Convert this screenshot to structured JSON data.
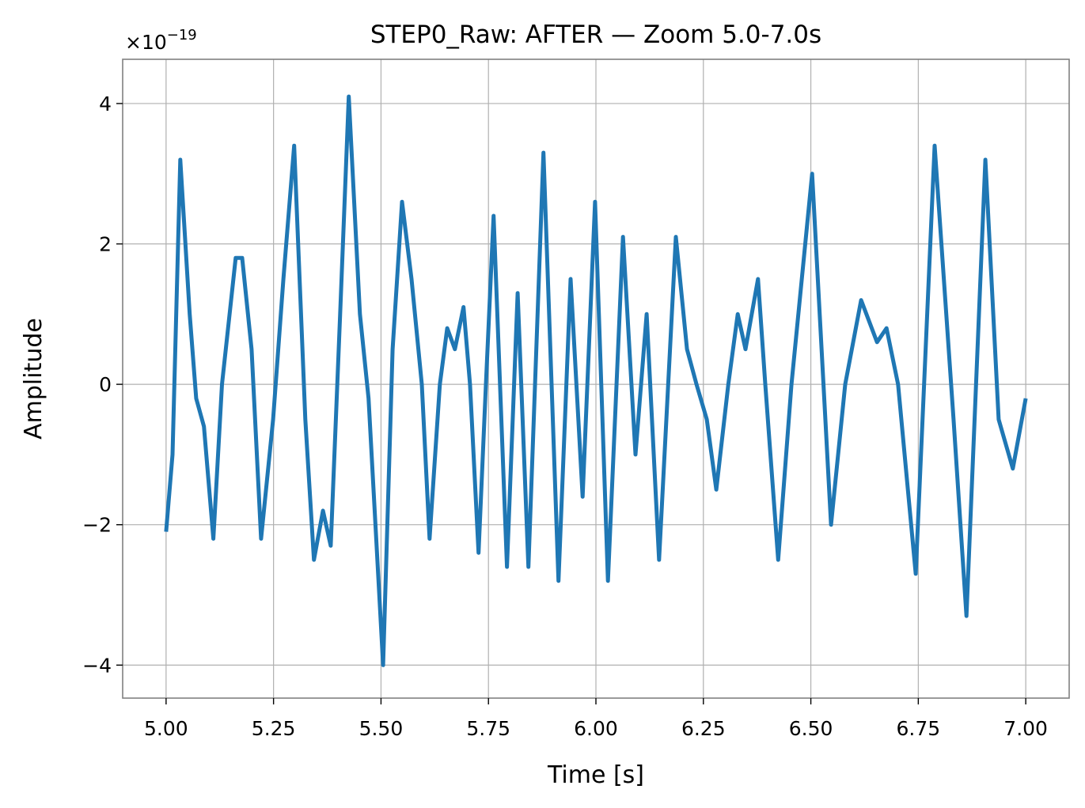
{
  "chart_data": {
    "type": "line",
    "title": "STEP0_Raw: AFTER — Zoom 5.0-7.0s",
    "xlabel": "Time [s]",
    "ylabel": "Amplitude",
    "y_offset": {
      "base": "×10",
      "exponent": "−19"
    },
    "color": "#1f77b4",
    "grid": true,
    "xlim": [
      4.899,
      7.101
    ],
    "ylim": [
      -4.47,
      4.63
    ],
    "xticks": [
      {
        "value": 5,
        "label": "5.00"
      },
      5.25,
      {
        "value": 5.5,
        "label": "5.50"
      },
      5.75,
      {
        "value": 6,
        "label": "6.00"
      },
      6.25,
      {
        "value": 6.5,
        "label": "6.50"
      },
      6.75,
      {
        "value": 7,
        "label": "7.00"
      }
    ],
    "yticks": [
      {
        "value": -4,
        "label": "−4"
      },
      {
        "value": -2,
        "label": "−2"
      },
      0,
      2,
      4
    ],
    "x": [
      5.0,
      5.015,
      5.033,
      5.055,
      5.07,
      5.088,
      5.11,
      5.13,
      5.162,
      5.177,
      5.199,
      5.221,
      5.249,
      5.273,
      5.298,
      5.324,
      5.344,
      5.365,
      5.383,
      5.405,
      5.425,
      5.451,
      5.471,
      5.505,
      5.527,
      5.549,
      5.571,
      5.595,
      5.613,
      5.637,
      5.654,
      5.672,
      5.692,
      5.707,
      5.727,
      5.744,
      5.762,
      5.793,
      5.818,
      5.843,
      5.878,
      5.913,
      5.941,
      5.969,
      5.998,
      6.028,
      6.063,
      6.092,
      6.118,
      6.147,
      6.186,
      6.212,
      6.234,
      6.258,
      6.28,
      6.308,
      6.33,
      6.348,
      6.377,
      6.394,
      6.424,
      6.455,
      6.503,
      6.547,
      6.58,
      6.617,
      6.654,
      6.676,
      6.703,
      6.744,
      6.788,
      6.832,
      6.862,
      6.906,
      6.937,
      6.97,
      7.0
    ],
    "values": [
      -2.1,
      -1.0,
      3.2,
      1.0,
      -0.2,
      -0.6,
      -2.2,
      0,
      1.8,
      1.8,
      0.5,
      -2.2,
      -0.5,
      1.5,
      3.4,
      -0.5,
      -2.5,
      -1.8,
      -2.3,
      1.0,
      4.1,
      1.0,
      -0.2,
      -4.0,
      0.5,
      2.6,
      1.5,
      0,
      -2.2,
      0,
      0.8,
      0.5,
      1.1,
      0,
      -2.4,
      0,
      2.4,
      -2.6,
      1.3,
      -2.6,
      3.3,
      -2.8,
      1.5,
      -1.6,
      2.6,
      -2.8,
      2.1,
      -1.0,
      1.0,
      -2.5,
      2.1,
      0.5,
      0,
      -0.5,
      -1.5,
      0,
      1.0,
      0.5,
      1.5,
      0,
      -2.5,
      0,
      3.0,
      -2.0,
      0,
      1.2,
      0.6,
      0.8,
      0,
      -2.7,
      3.4,
      -0.5,
      -3.3,
      3.2,
      -0.5,
      -1.2,
      -0.2
    ]
  }
}
